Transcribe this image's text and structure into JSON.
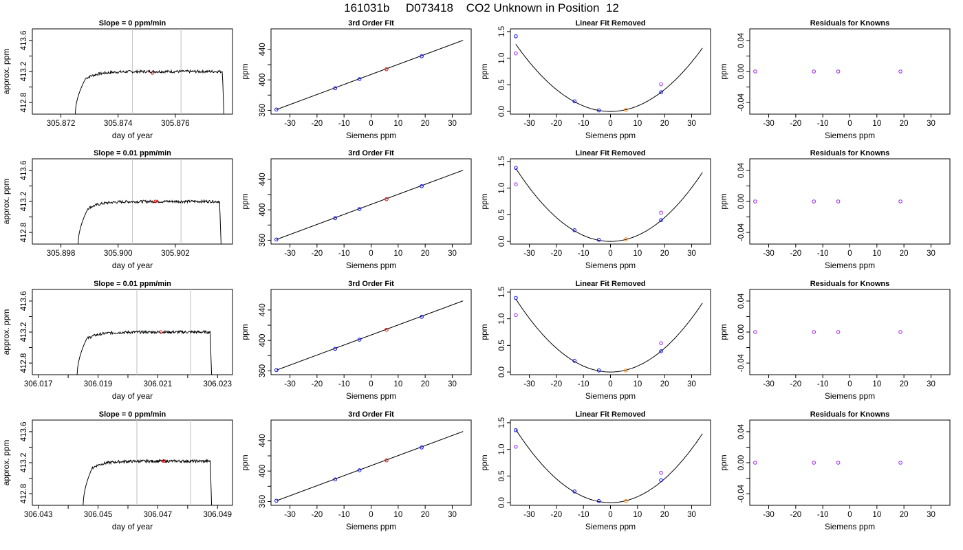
{
  "page_title": "161031b     D073418    CO2 Unknown in Position  12",
  "colors": {
    "axis": "#000000",
    "curve": "#000000",
    "vline": "#c8c8c8",
    "unknown": "#ff0000",
    "known": "#0000ff",
    "open_known": "#a020f0",
    "lin_unknown": "#ff7f00"
  },
  "chart_data": [
    {
      "type": "line",
      "row": 1,
      "col": 1,
      "title": "Slope =  0  ppm/min",
      "xlabel": "day of year",
      "ylabel": "approx. ppm",
      "xlim": [
        305.871,
        305.878
      ],
      "ylim": [
        412.65,
        413.75
      ],
      "xticks": [
        {
          "v": 305.872,
          "label": "305.872"
        },
        {
          "v": 305.874,
          "label": "305.874"
        },
        {
          "v": 305.876,
          "label": "305.876"
        }
      ],
      "yticks": [
        {
          "v": 412.8,
          "label": "412.8"
        },
        {
          "v": 413.2,
          "label": "413.2"
        },
        {
          "v": 413.6,
          "label": "413.6"
        }
      ],
      "yminor": [
        413.0,
        413.4
      ],
      "vlines": [
        305.8745,
        305.8762
      ],
      "trace": {
        "x0": 305.8725,
        "x1": 305.8777,
        "plateau": 413.2
      },
      "marker": {
        "x": 305.8752,
        "y": 413.18
      }
    },
    {
      "type": "scatter",
      "row": 1,
      "col": 2,
      "title": "3rd Order Fit",
      "xlabel": "Siemens ppm",
      "ylabel": "ppm",
      "xlim": [
        -37,
        37
      ],
      "ylim": [
        355,
        467
      ],
      "xticks": [
        -30,
        -20,
        -10,
        0,
        10,
        20,
        30
      ],
      "yticks": [
        360,
        400,
        440
      ],
      "yminor": [
        380,
        420
      ],
      "line": {
        "x0": -35,
        "y0": 361,
        "x1": 34,
        "y1": 452
      },
      "points": [
        {
          "x": -35,
          "y": 361,
          "style": "known"
        },
        {
          "x": -13.3,
          "y": 389,
          "style": "known"
        },
        {
          "x": -4.3,
          "y": 401,
          "style": "known"
        },
        {
          "x": 5.7,
          "y": 414,
          "style": "unknown"
        },
        {
          "x": 18.7,
          "y": 431,
          "style": "known"
        }
      ]
    },
    {
      "type": "scatter",
      "row": 1,
      "col": 3,
      "title": "Linear Fit Removed",
      "xlabel": "Siemens ppm",
      "ylabel": "ppm",
      "xlim": [
        -37,
        37
      ],
      "ylim": [
        -0.05,
        1.55
      ],
      "xticks": [
        -30,
        -20,
        -10,
        0,
        10,
        20,
        30
      ],
      "yticks": [
        0.0,
        0.5,
        1.0,
        1.5
      ],
      "yticklabels": [
        "0.0",
        "0.5",
        "1.0",
        "1.5"
      ],
      "curve": {
        "a": 0.00103,
        "h": 0,
        "k": 0,
        "x0": -35,
        "x1": 34
      },
      "points": [
        {
          "x": -35,
          "y": 1.09,
          "style": "open_known"
        },
        {
          "x": -35,
          "y": 1.41,
          "style": "known"
        },
        {
          "x": -13.3,
          "y": 0.19,
          "style": "known"
        },
        {
          "x": -4.3,
          "y": 0.02,
          "style": "known"
        },
        {
          "x": 5.7,
          "y": 0.03,
          "style": "lin_unknown"
        },
        {
          "x": 18.7,
          "y": 0.51,
          "style": "open_known"
        },
        {
          "x": 18.7,
          "y": 0.36,
          "style": "known"
        }
      ]
    },
    {
      "type": "scatter",
      "row": 1,
      "col": 4,
      "title": "Residuals for Knowns",
      "xlabel": "Siemens ppm",
      "ylabel": "ppm",
      "xlim": [
        -37,
        37
      ],
      "ylim": [
        -0.055,
        0.055
      ],
      "xticks": [
        -30,
        -20,
        -10,
        0,
        10,
        20,
        30
      ],
      "yticks": [
        -0.04,
        0.0,
        0.04
      ],
      "yticklabels": [
        "-0.04",
        "0.00",
        "0.04"
      ],
      "yminor": [
        -0.02,
        0.02
      ],
      "points": [
        {
          "x": -35,
          "y": 0,
          "style": "open_known"
        },
        {
          "x": -13.3,
          "y": 0,
          "style": "open_known"
        },
        {
          "x": -4.3,
          "y": 0,
          "style": "open_known"
        },
        {
          "x": 18.7,
          "y": 0,
          "style": "open_known"
        }
      ]
    },
    {
      "type": "line",
      "row": 2,
      "col": 1,
      "title": "Slope =  0.01  ppm/min",
      "xlabel": "day of year",
      "ylabel": "approx. ppm",
      "xlim": [
        305.897,
        305.904
      ],
      "ylim": [
        412.65,
        413.75
      ],
      "xticks": [
        {
          "v": 305.898,
          "label": "305.898"
        },
        {
          "v": 305.9,
          "label": "305.900"
        },
        {
          "v": 305.902,
          "label": "305.902"
        }
      ],
      "yticks": [
        {
          "v": 412.8,
          "label": "412.8"
        },
        {
          "v": 413.2,
          "label": "413.2"
        },
        {
          "v": 413.6,
          "label": "413.6"
        }
      ],
      "yminor": [
        413.0,
        413.4
      ],
      "vlines": [
        305.9005,
        305.9022
      ],
      "trace": {
        "x0": 305.8986,
        "x1": 305.9036,
        "plateau": 413.2
      },
      "marker": {
        "x": 305.9013,
        "y": 413.2
      }
    },
    {
      "type": "scatter",
      "row": 2,
      "col": 2,
      "title": "3rd Order Fit",
      "xlabel": "Siemens ppm",
      "ylabel": "ppm",
      "xlim": [
        -37,
        37
      ],
      "ylim": [
        355,
        467
      ],
      "xticks": [
        -30,
        -20,
        -10,
        0,
        10,
        20,
        30
      ],
      "yticks": [
        360,
        400,
        440
      ],
      "yminor": [
        380,
        420
      ],
      "line": {
        "x0": -35,
        "y0": 361,
        "x1": 34,
        "y1": 452
      },
      "points": [
        {
          "x": -35,
          "y": 361,
          "style": "known"
        },
        {
          "x": -13.3,
          "y": 389,
          "style": "known"
        },
        {
          "x": -4.3,
          "y": 401,
          "style": "known"
        },
        {
          "x": 5.7,
          "y": 414,
          "style": "unknown"
        },
        {
          "x": 18.7,
          "y": 431,
          "style": "known"
        }
      ]
    },
    {
      "type": "scatter",
      "row": 2,
      "col": 3,
      "title": "Linear Fit Removed",
      "xlabel": "Siemens ppm",
      "ylabel": "ppm",
      "xlim": [
        -37,
        37
      ],
      "ylim": [
        -0.05,
        1.55
      ],
      "xticks": [
        -30,
        -20,
        -10,
        0,
        10,
        20,
        30
      ],
      "yticks": [
        0.0,
        0.5,
        1.0,
        1.5
      ],
      "yticklabels": [
        "0.0",
        "0.5",
        "1.0",
        "1.5"
      ],
      "curve": {
        "a": 0.00112,
        "h": 0,
        "k": 0,
        "x0": -35,
        "x1": 34
      },
      "points": [
        {
          "x": -35,
          "y": 1.07,
          "style": "open_known"
        },
        {
          "x": -35,
          "y": 1.38,
          "style": "known"
        },
        {
          "x": -13.3,
          "y": 0.21,
          "style": "known"
        },
        {
          "x": -4.3,
          "y": 0.03,
          "style": "known"
        },
        {
          "x": 5.7,
          "y": 0.04,
          "style": "lin_unknown"
        },
        {
          "x": 18.7,
          "y": 0.54,
          "style": "open_known"
        },
        {
          "x": 18.7,
          "y": 0.4,
          "style": "known"
        }
      ]
    },
    {
      "type": "scatter",
      "row": 2,
      "col": 4,
      "title": "Residuals for Knowns",
      "xlabel": "Siemens ppm",
      "ylabel": "ppm",
      "xlim": [
        -37,
        37
      ],
      "ylim": [
        -0.055,
        0.055
      ],
      "xticks": [
        -30,
        -20,
        -10,
        0,
        10,
        20,
        30
      ],
      "yticks": [
        -0.04,
        0.0,
        0.04
      ],
      "yticklabels": [
        "-0.04",
        "0.00",
        "0.04"
      ],
      "yminor": [
        -0.02,
        0.02
      ],
      "points": [
        {
          "x": -35,
          "y": 0,
          "style": "open_known"
        },
        {
          "x": -13.3,
          "y": 0,
          "style": "open_known"
        },
        {
          "x": -4.3,
          "y": 0,
          "style": "open_known"
        },
        {
          "x": 18.7,
          "y": 0,
          "style": "open_known"
        }
      ]
    },
    {
      "type": "line",
      "row": 3,
      "col": 1,
      "title": "Slope =  0.01  ppm/min",
      "xlabel": "day of year",
      "ylabel": "approx. ppm",
      "xlim": [
        306.0168,
        306.0235
      ],
      "ylim": [
        412.65,
        413.75
      ],
      "xticks": [
        {
          "v": 306.017,
          "label": "306.017"
        },
        {
          "v": 306.019,
          "label": "306.019"
        },
        {
          "v": 306.021,
          "label": "306.021"
        },
        {
          "v": 306.023,
          "label": "306.023"
        }
      ],
      "yticks": [
        {
          "v": 412.8,
          "label": "412.8"
        },
        {
          "v": 413.2,
          "label": "413.2"
        },
        {
          "v": 413.6,
          "label": "413.6"
        }
      ],
      "yminor": [
        413.0,
        413.4
      ],
      "xminor": [
        306.018,
        306.02,
        306.022
      ],
      "vlines": [
        306.0203,
        306.0221
      ],
      "trace": {
        "x0": 306.0183,
        "x1": 306.0228,
        "plateau": 413.2
      },
      "marker": {
        "x": 306.0211,
        "y": 413.2
      }
    },
    {
      "type": "scatter",
      "row": 3,
      "col": 2,
      "title": "3rd Order Fit",
      "xlabel": "Siemens ppm",
      "ylabel": "ppm",
      "xlim": [
        -37,
        37
      ],
      "ylim": [
        355,
        467
      ],
      "xticks": [
        -30,
        -20,
        -10,
        0,
        10,
        20,
        30
      ],
      "yticks": [
        360,
        400,
        440
      ],
      "yminor": [
        380,
        420
      ],
      "line": {
        "x0": -35,
        "y0": 361,
        "x1": 34,
        "y1": 452
      },
      "points": [
        {
          "x": -35,
          "y": 361,
          "style": "known"
        },
        {
          "x": -13.3,
          "y": 389,
          "style": "known"
        },
        {
          "x": -4.3,
          "y": 401,
          "style": "known"
        },
        {
          "x": 5.7,
          "y": 414,
          "style": "unknown"
        },
        {
          "x": 18.7,
          "y": 431,
          "style": "known"
        }
      ]
    },
    {
      "type": "scatter",
      "row": 3,
      "col": 3,
      "title": "Linear Fit Removed",
      "xlabel": "Siemens ppm",
      "ylabel": "ppm",
      "xlim": [
        -37,
        37
      ],
      "ylim": [
        -0.05,
        1.55
      ],
      "xticks": [
        -30,
        -20,
        -10,
        0,
        10,
        20,
        30
      ],
      "yticks": [
        0.0,
        0.5,
        1.0,
        1.5
      ],
      "yticklabels": [
        "0.0",
        "0.5",
        "1.0",
        "1.5"
      ],
      "curve": {
        "a": 0.00112,
        "h": 0,
        "k": 0,
        "x0": -35,
        "x1": 34
      },
      "points": [
        {
          "x": -35,
          "y": 1.07,
          "style": "open_known"
        },
        {
          "x": -35,
          "y": 1.39,
          "style": "known"
        },
        {
          "x": -13.3,
          "y": 0.21,
          "style": "known"
        },
        {
          "x": -4.3,
          "y": 0.03,
          "style": "known"
        },
        {
          "x": 5.7,
          "y": 0.03,
          "style": "lin_unknown"
        },
        {
          "x": 18.7,
          "y": 0.54,
          "style": "open_known"
        },
        {
          "x": 18.7,
          "y": 0.39,
          "style": "known"
        }
      ]
    },
    {
      "type": "scatter",
      "row": 3,
      "col": 4,
      "title": "Residuals for Knowns",
      "xlabel": "Siemens ppm",
      "ylabel": "ppm",
      "xlim": [
        -37,
        37
      ],
      "ylim": [
        -0.055,
        0.055
      ],
      "xticks": [
        -30,
        -20,
        -10,
        0,
        10,
        20,
        30
      ],
      "yticks": [
        -0.04,
        0.0,
        0.04
      ],
      "yticklabels": [
        "-0.04",
        "0.00",
        "0.04"
      ],
      "yminor": [
        -0.02,
        0.02
      ],
      "points": [
        {
          "x": -35,
          "y": 0,
          "style": "open_known"
        },
        {
          "x": -13.3,
          "y": 0,
          "style": "open_known"
        },
        {
          "x": -4.3,
          "y": 0,
          "style": "open_known"
        },
        {
          "x": 18.7,
          "y": 0,
          "style": "open_known"
        }
      ]
    },
    {
      "type": "line",
      "row": 4,
      "col": 1,
      "title": "Slope =  0  ppm/min",
      "xlabel": "day of year",
      "ylabel": "approx. ppm",
      "xlim": [
        306.0428,
        306.0495
      ],
      "ylim": [
        412.65,
        413.75
      ],
      "xticks": [
        {
          "v": 306.043,
          "label": "306.043"
        },
        {
          "v": 306.045,
          "label": "306.045"
        },
        {
          "v": 306.047,
          "label": "306.047"
        },
        {
          "v": 306.049,
          "label": "306.049"
        }
      ],
      "yticks": [
        {
          "v": 412.8,
          "label": "412.8"
        },
        {
          "v": 413.2,
          "label": "413.2"
        },
        {
          "v": 413.6,
          "label": "413.6"
        }
      ],
      "yminor": [
        413.0,
        413.4
      ],
      "xminor": [
        306.044,
        306.046,
        306.048
      ],
      "vlines": [
        306.0463,
        306.0481
      ],
      "trace": {
        "x0": 306.0445,
        "x1": 306.0488,
        "plateau": 413.22
      },
      "marker": {
        "x": 306.0472,
        "y": 413.22
      }
    },
    {
      "type": "scatter",
      "row": 4,
      "col": 2,
      "title": "3rd Order Fit",
      "xlabel": "Siemens ppm",
      "ylabel": "ppm",
      "xlim": [
        -37,
        37
      ],
      "ylim": [
        355,
        467
      ],
      "xticks": [
        -30,
        -20,
        -10,
        0,
        10,
        20,
        30
      ],
      "yticks": [
        360,
        400,
        440
      ],
      "yminor": [
        380,
        420
      ],
      "line": {
        "x0": -35,
        "y0": 361,
        "x1": 34,
        "y1": 452
      },
      "points": [
        {
          "x": -35,
          "y": 361,
          "style": "known"
        },
        {
          "x": -13.3,
          "y": 389,
          "style": "known"
        },
        {
          "x": -4.3,
          "y": 401,
          "style": "known"
        },
        {
          "x": 5.7,
          "y": 414,
          "style": "unknown"
        },
        {
          "x": 18.7,
          "y": 431,
          "style": "known"
        }
      ]
    },
    {
      "type": "scatter",
      "row": 4,
      "col": 3,
      "title": "Linear Fit Removed",
      "xlabel": "Siemens ppm",
      "ylabel": "ppm",
      "xlim": [
        -37,
        37
      ],
      "ylim": [
        -0.05,
        1.55
      ],
      "xticks": [
        -30,
        -20,
        -10,
        0,
        10,
        20,
        30
      ],
      "yticks": [
        0.0,
        0.5,
        1.0,
        1.5
      ],
      "yticklabels": [
        "0.0",
        "0.5",
        "1.0",
        "1.5"
      ],
      "curve": {
        "a": 0.00112,
        "h": 0,
        "k": 0,
        "x0": -35,
        "x1": 34
      },
      "points": [
        {
          "x": -35,
          "y": 1.05,
          "style": "open_known"
        },
        {
          "x": -35,
          "y": 1.36,
          "style": "known"
        },
        {
          "x": -13.3,
          "y": 0.21,
          "style": "known"
        },
        {
          "x": -4.3,
          "y": 0.03,
          "style": "known"
        },
        {
          "x": 5.7,
          "y": 0.03,
          "style": "lin_unknown"
        },
        {
          "x": 18.7,
          "y": 0.56,
          "style": "open_known"
        },
        {
          "x": 18.7,
          "y": 0.42,
          "style": "known"
        }
      ]
    },
    {
      "type": "scatter",
      "row": 4,
      "col": 4,
      "title": "Residuals for Knowns",
      "xlabel": "Siemens ppm",
      "ylabel": "ppm",
      "xlim": [
        -37,
        37
      ],
      "ylim": [
        -0.055,
        0.055
      ],
      "xticks": [
        -30,
        -20,
        -10,
        0,
        10,
        20,
        30
      ],
      "yticks": [
        -0.04,
        0.0,
        0.04
      ],
      "yticklabels": [
        "-0.04",
        "0.00",
        "0.04"
      ],
      "yminor": [
        -0.02,
        0.02
      ],
      "points": [
        {
          "x": -35,
          "y": 0,
          "style": "open_known"
        },
        {
          "x": -13.3,
          "y": 0,
          "style": "open_known"
        },
        {
          "x": -4.3,
          "y": 0,
          "style": "open_known"
        },
        {
          "x": 18.7,
          "y": 0,
          "style": "open_known"
        }
      ]
    }
  ]
}
